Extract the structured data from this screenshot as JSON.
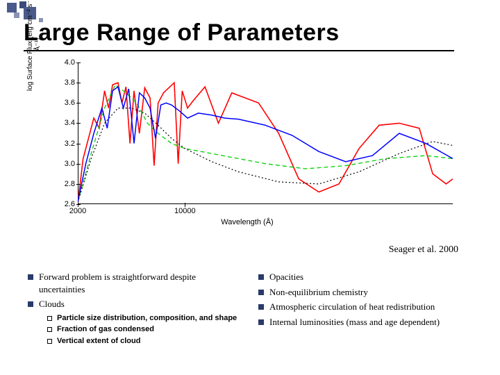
{
  "title": "Large Range of Parameters",
  "citation": "Seager et al. 2000",
  "chart": {
    "ylabel": "log Surface Flux (erg cm⁻² s⁻¹ Å⁻¹)",
    "xlabel": "Wavelength (Å)",
    "ylim": [
      2.6,
      4.0
    ],
    "ytick_vals": [
      2.6,
      2.8,
      3.0,
      3.2,
      3.4,
      3.6,
      3.8,
      4.0
    ],
    "xlim": [
      2000,
      30000
    ],
    "xtick_vals": [
      2000,
      10000
    ],
    "background_color": "#ffffff",
    "series": [
      {
        "name": "solid_red",
        "color": "#ff0000",
        "width": 1.6,
        "dash": "none",
        "points": [
          [
            2000,
            2.6
          ],
          [
            2400,
            3.05
          ],
          [
            2800,
            3.25
          ],
          [
            3200,
            3.45
          ],
          [
            3600,
            3.35
          ],
          [
            4000,
            3.72
          ],
          [
            4300,
            3.55
          ],
          [
            4600,
            3.78
          ],
          [
            5000,
            3.8
          ],
          [
            5300,
            3.6
          ],
          [
            5600,
            3.76
          ],
          [
            5900,
            3.2
          ],
          [
            6200,
            3.72
          ],
          [
            6600,
            3.3
          ],
          [
            7000,
            3.75
          ],
          [
            7400,
            3.65
          ],
          [
            7700,
            2.98
          ],
          [
            8000,
            3.6
          ],
          [
            8400,
            3.7
          ],
          [
            8800,
            3.75
          ],
          [
            9200,
            3.8
          ],
          [
            9500,
            3.0
          ],
          [
            9800,
            3.72
          ],
          [
            10200,
            3.55
          ],
          [
            10600,
            3.62
          ],
          [
            11500,
            3.76
          ],
          [
            12500,
            3.4
          ],
          [
            13500,
            3.7
          ],
          [
            14500,
            3.65
          ],
          [
            15500,
            3.6
          ],
          [
            17000,
            3.3
          ],
          [
            18500,
            2.85
          ],
          [
            20000,
            2.72
          ],
          [
            21500,
            2.8
          ],
          [
            23000,
            3.15
          ],
          [
            24500,
            3.38
          ],
          [
            26000,
            3.4
          ],
          [
            27500,
            3.35
          ],
          [
            28500,
            2.9
          ],
          [
            29500,
            2.8
          ],
          [
            30000,
            2.85
          ]
        ]
      },
      {
        "name": "dashed_green",
        "color": "#00d000",
        "width": 1.3,
        "dash": "6,4",
        "points": [
          [
            2000,
            2.62
          ],
          [
            3000,
            3.1
          ],
          [
            4000,
            3.55
          ],
          [
            4800,
            3.78
          ],
          [
            5600,
            3.7
          ],
          [
            6400,
            3.6
          ],
          [
            7200,
            3.4
          ],
          [
            8000,
            3.3
          ],
          [
            9000,
            3.2
          ],
          [
            10000,
            3.15
          ],
          [
            12000,
            3.1
          ],
          [
            14000,
            3.05
          ],
          [
            16000,
            3.0
          ],
          [
            19000,
            2.95
          ],
          [
            22000,
            2.98
          ],
          [
            25000,
            3.05
          ],
          [
            28000,
            3.08
          ],
          [
            30000,
            3.05
          ]
        ]
      },
      {
        "name": "dotted_black",
        "color": "#000000",
        "width": 1.2,
        "dash": "2,3",
        "points": [
          [
            2000,
            2.62
          ],
          [
            3000,
            3.05
          ],
          [
            4000,
            3.4
          ],
          [
            5000,
            3.55
          ],
          [
            6000,
            3.55
          ],
          [
            7000,
            3.5
          ],
          [
            8000,
            3.38
          ],
          [
            9000,
            3.25
          ],
          [
            10000,
            3.15
          ],
          [
            12000,
            3.02
          ],
          [
            14000,
            2.92
          ],
          [
            17000,
            2.82
          ],
          [
            20000,
            2.8
          ],
          [
            23000,
            2.92
          ],
          [
            26000,
            3.1
          ],
          [
            28500,
            3.22
          ],
          [
            30000,
            3.18
          ]
        ]
      },
      {
        "name": "solid_blue",
        "color": "#0000ff",
        "width": 1.5,
        "dash": "none",
        "points": [
          [
            2000,
            2.62
          ],
          [
            2600,
            3.0
          ],
          [
            3200,
            3.3
          ],
          [
            3800,
            3.55
          ],
          [
            4200,
            3.35
          ],
          [
            4600,
            3.72
          ],
          [
            5000,
            3.76
          ],
          [
            5400,
            3.55
          ],
          [
            5800,
            3.74
          ],
          [
            6200,
            3.2
          ],
          [
            6600,
            3.7
          ],
          [
            7000,
            3.65
          ],
          [
            7400,
            3.55
          ],
          [
            7800,
            3.25
          ],
          [
            8200,
            3.58
          ],
          [
            8600,
            3.6
          ],
          [
            9000,
            3.58
          ],
          [
            9600,
            3.52
          ],
          [
            10200,
            3.45
          ],
          [
            11000,
            3.5
          ],
          [
            12000,
            3.48
          ],
          [
            13000,
            3.45
          ],
          [
            14000,
            3.44
          ],
          [
            16000,
            3.38
          ],
          [
            18000,
            3.28
          ],
          [
            20000,
            3.12
          ],
          [
            22000,
            3.02
          ],
          [
            24000,
            3.08
          ],
          [
            26000,
            3.3
          ],
          [
            28000,
            3.2
          ],
          [
            30000,
            3.05
          ]
        ]
      }
    ]
  },
  "left_bullets": [
    "Forward problem is straightforward despite uncertainties",
    "Clouds"
  ],
  "sub_bullets": [
    "Particle size distribution, composition, and shape",
    "Fraction of gas condensed",
    "Vertical extent of cloud"
  ],
  "right_bullets": [
    "Opacities",
    "Non-equilibrium chemistry",
    "Atmospheric circulation of heat redistribution",
    "Internal luminosities (mass and age dependent)"
  ]
}
